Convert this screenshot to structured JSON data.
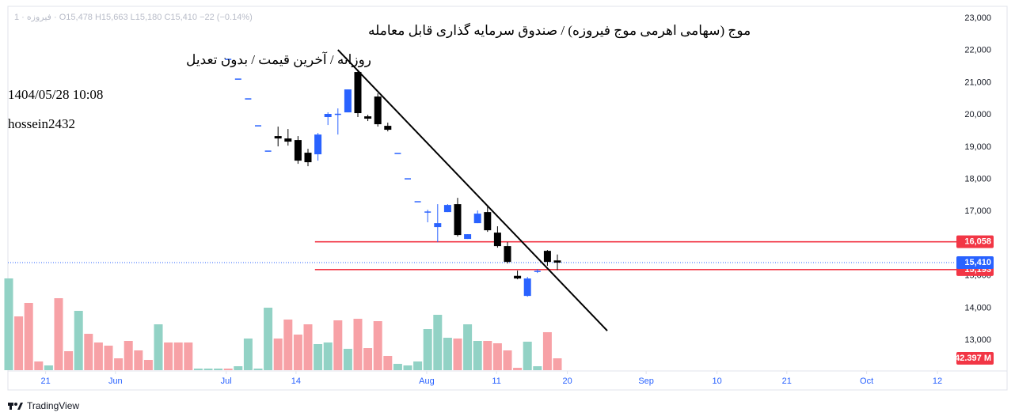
{
  "chart_data": {
    "type": "candlestick",
    "legend_line": "1 · فیروزه · O15,478 H15,663 L15,180 C15,410 −22 (−0.14%)",
    "title": "موج (سهامی اهرمی موج فیروزه) / صندوق سرمایه گذاری قابل معامله",
    "subtitle": "روزانه / آخرین قیمت / بدون تعدیل",
    "timestamp": "1404/05/28 10:08",
    "author": "hossein2432",
    "brand": "TradingView",
    "xlim": [
      0,
      100
    ],
    "xticks": [
      {
        "value": 3.7,
        "label": "21"
      },
      {
        "value": 10.7,
        "label": "Jun"
      },
      {
        "value": 21.8,
        "label": "Jul"
      },
      {
        "value": 28.8,
        "label": "14"
      },
      {
        "value": 41.9,
        "label": "Aug"
      },
      {
        "value": 48.9,
        "label": "11"
      },
      {
        "value": 56,
        "label": "20"
      },
      {
        "value": 63.9,
        "label": "Sep"
      },
      {
        "value": 71,
        "label": "10"
      },
      {
        "value": 78,
        "label": "21"
      },
      {
        "value": 86,
        "label": "Oct"
      },
      {
        "value": 93.1,
        "label": "12"
      }
    ],
    "ylim": [
      12070,
      23320
    ],
    "yticks": [
      {
        "value": 13000,
        "label": "13,000"
      },
      {
        "value": 14000,
        "label": "14,000"
      },
      {
        "value": 15000,
        "label": "15,000"
      },
      {
        "value": 16000,
        "label": "16,000"
      },
      {
        "value": 17000,
        "label": "17,000"
      },
      {
        "value": 18000,
        "label": "18,000"
      },
      {
        "value": 19000,
        "label": "19,000"
      },
      {
        "value": 20000,
        "label": "20,000"
      },
      {
        "value": 21000,
        "label": "21,000"
      },
      {
        "value": 22000,
        "label": "22,000"
      },
      {
        "value": 23000,
        "label": "23,000"
      }
    ],
    "up_color": "#2962ff",
    "down_color": "#000000",
    "open": [
      null,
      null,
      null,
      null,
      null,
      null,
      null,
      null,
      null,
      null,
      null,
      null,
      null,
      null,
      null,
      null,
      null,
      null,
      null,
      null,
      null,
      null,
      21722,
      21108,
      20494,
      19658,
      18872,
      19339,
      19266,
      19216,
      18823,
      18774,
      19930,
      20003,
      20076,
      21329,
      19953,
      20568,
      19658,
      18799,
      18012,
      17300,
      16980,
      16514,
      16980,
      17226,
      16145,
      16636,
      16980,
      16342,
      15924,
      15000,
      14376,
      15138,
      15776,
      15478
    ],
    "high": [
      null,
      null,
      null,
      null,
      null,
      null,
      null,
      null,
      null,
      null,
      null,
      null,
      null,
      null,
      null,
      null,
      null,
      null,
      null,
      null,
      null,
      null,
      21722,
      21108,
      20494,
      19658,
      18872,
      19634,
      19560,
      19339,
      18946,
      19437,
      20078,
      20199,
      20789,
      21403,
      20003,
      20666,
      19757,
      18799,
      18012,
      17300,
      17054,
      17226,
      17226,
      17423,
      16293,
      17029,
      17152,
      16538,
      16047,
      15162,
      14966,
      15211,
      15801,
      15663
    ],
    "low": [
      null,
      null,
      null,
      null,
      null,
      null,
      null,
      null,
      null,
      null,
      null,
      null,
      null,
      null,
      null,
      null,
      null,
      null,
      null,
      null,
      null,
      null,
      21722,
      21108,
      20494,
      19658,
      18872,
      19020,
      19044,
      18479,
      18405,
      18577,
      19683,
      19388,
      20076,
      19929,
      19806,
      19634,
      19486,
      18799,
      18012,
      17300,
      16662,
      16047,
      16980,
      16219,
      16145,
      16636,
      16366,
      15875,
      15383,
      14892,
      14351,
      15088,
      15310,
      15180
    ],
    "close": [
      null,
      null,
      null,
      null,
      null,
      null,
      null,
      null,
      null,
      null,
      null,
      null,
      null,
      null,
      null,
      null,
      null,
      null,
      null,
      null,
      null,
      null,
      21722,
      21108,
      20494,
      19658,
      18872,
      19266,
      19167,
      18577,
      18528,
      19388,
      20028,
      20028,
      20789,
      20052,
      19880,
      19708,
      19536,
      18799,
      18012,
      17300,
      16980,
      16636,
      17201,
      16268,
      16293,
      16931,
      16415,
      15924,
      15432,
      14917,
      14917,
      15138,
      15432,
      15410
    ],
    "volume": {
      "lim": [
        0,
        400
      ],
      "values": [
        327.9,
        192.2,
        240.3,
        31.1,
        17.0,
        257.2,
        67.8,
        212.0,
        130.0,
        98.9,
        87.6,
        42.4,
        104.6,
        70.7,
        36.7,
        163.9,
        98.9,
        98.9,
        98.9,
        5.7,
        5.7,
        5.7,
        5.7,
        14.1,
        113.1,
        5.7,
        223.3,
        113.1,
        180.9,
        127.2,
        163.9,
        93.3,
        98.9,
        178.1,
        76.3,
        183.7,
        79.1,
        175.2,
        50.9,
        22.6,
        17.0,
        31.1,
        147.0,
        197.9,
        115.9,
        113.1,
        163.9,
        104.6,
        104.6,
        96.1,
        70.7,
        8.5,
        101.8,
        14.1,
        135.7,
        42.397
      ],
      "colors": [
        "#92d2c5",
        "#f7a1a6",
        "#f7a1a6",
        "#f7a1a6",
        "#92d2c5",
        "#f7a1a6",
        "#f7a1a6",
        "#92d2c5",
        "#f7a1a6",
        "#f7a1a6",
        "#f7a1a6",
        "#f7a1a6",
        "#f7a1a6",
        "#f7a1a6",
        "#f7a1a6",
        "#92d2c5",
        "#f7a1a6",
        "#f7a1a6",
        "#f7a1a6",
        "#92d2c5",
        "#92d2c5",
        "#92d2c5",
        "#f7a1a6",
        "#92d2c5",
        "#92d2c5",
        "#92d2c5",
        "#92d2c5",
        "#f7a1a6",
        "#f7a1a6",
        "#f7a1a6",
        "#f7a1a6",
        "#92d2c5",
        "#92d2c5",
        "#f7a1a6",
        "#92d2c5",
        "#f7a1a6",
        "#f7a1a6",
        "#f7a1a6",
        "#f7a1a6",
        "#92d2c5",
        "#92d2c5",
        "#92d2c5",
        "#92d2c5",
        "#92d2c5",
        "#92d2c5",
        "#f7a1a6",
        "#92d2c5",
        "#92d2c5",
        "#f7a1a6",
        "#f7a1a6",
        "#f7a1a6",
        "#f7a1a6",
        "#92d2c5",
        "#92d2c5",
        "#f7a1a6",
        "#f7a1a6"
      ],
      "marker": {
        "value": 42.397,
        "label": "42.397 M",
        "color": "#f23645"
      }
    },
    "trendline": {
      "x": [
        33,
        60
      ],
      "y": [
        22017,
        13295
      ],
      "color": "#000000"
    },
    "levels": [
      {
        "value": 16058,
        "label": "16,058",
        "color": "#f23645",
        "x_start": 30.7
      },
      {
        "value": 15193,
        "label": "15,193",
        "color": "#f23645",
        "x_start": 30.7
      }
    ],
    "price_line": {
      "value": 15410,
      "label": "15,410",
      "color": "#2962ff"
    }
  }
}
